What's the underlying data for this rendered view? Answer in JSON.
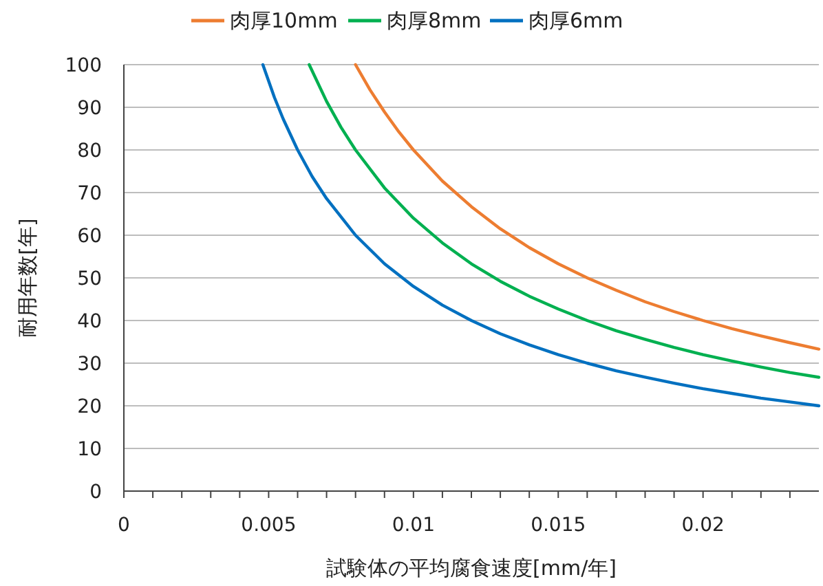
{
  "chart_data": {
    "type": "line",
    "xlabel": "試験体の平均腐食速度[mm/年]",
    "ylabel": "耐用年数[年]",
    "xlim": [
      0,
      0.024
    ],
    "xticks": [
      0,
      {
        "value": 0.001,
        "label": null
      },
      {
        "value": 0.002,
        "label": null
      },
      {
        "value": 0.003,
        "label": null
      },
      {
        "value": 0.004,
        "label": null
      },
      0.005,
      {
        "value": 0.006,
        "label": null
      },
      {
        "value": 0.007,
        "label": null
      },
      {
        "value": 0.008,
        "label": null
      },
      {
        "value": 0.009,
        "label": null
      },
      0.01,
      {
        "value": 0.011,
        "label": null
      },
      {
        "value": 0.012,
        "label": null
      },
      {
        "value": 0.013,
        "label": null
      },
      {
        "value": 0.014,
        "label": null
      },
      0.015,
      {
        "value": 0.016,
        "label": null
      },
      {
        "value": 0.017,
        "label": null
      },
      {
        "value": 0.018,
        "label": null
      },
      {
        "value": 0.019,
        "label": null
      },
      0.02,
      {
        "value": 0.021,
        "label": null
      },
      {
        "value": 0.022,
        "label": null
      },
      {
        "value": 0.023,
        "label": null
      }
    ],
    "ylim": [
      0,
      100
    ],
    "yticks": [
      0,
      10,
      20,
      30,
      40,
      50,
      60,
      70,
      80,
      90,
      100
    ],
    "grid": "y",
    "legend": "top",
    "series": [
      {
        "name": "肉厚10mm",
        "color": "#ed7d31",
        "x": [
          0.008,
          0.0085,
          0.009,
          0.0095,
          0.01,
          0.011,
          0.012,
          0.013,
          0.014,
          0.015,
          0.016,
          0.017,
          0.018,
          0.019,
          0.02,
          0.021,
          0.022,
          0.023,
          0.024
        ],
        "values": [
          100,
          94.1,
          88.9,
          84.2,
          80,
          72.7,
          66.7,
          61.5,
          57.1,
          53.3,
          50,
          47.1,
          44.4,
          42.1,
          40,
          38.1,
          36.4,
          34.8,
          33.3
        ]
      },
      {
        "name": "肉厚8mm",
        "color": "#00b050",
        "x": [
          0.0064,
          0.007,
          0.0075,
          0.008,
          0.009,
          0.01,
          0.011,
          0.012,
          0.013,
          0.014,
          0.015,
          0.016,
          0.017,
          0.018,
          0.019,
          0.02,
          0.021,
          0.022,
          0.023,
          0.024
        ],
        "values": [
          100,
          91.4,
          85.3,
          80,
          71.1,
          64,
          58.2,
          53.3,
          49.2,
          45.7,
          42.7,
          40,
          37.6,
          35.6,
          33.7,
          32,
          30.5,
          29.1,
          27.8,
          26.7
        ]
      },
      {
        "name": "肉厚6mm",
        "color": "#0070c0",
        "x": [
          0.0048,
          0.0052,
          0.0055,
          0.006,
          0.0065,
          0.007,
          0.008,
          0.009,
          0.01,
          0.011,
          0.012,
          0.013,
          0.014,
          0.015,
          0.016,
          0.017,
          0.018,
          0.019,
          0.02,
          0.021,
          0.022,
          0.023,
          0.024
        ],
        "values": [
          100,
          92.3,
          87.3,
          80,
          73.8,
          68.6,
          60,
          53.3,
          48,
          43.6,
          40,
          36.9,
          34.3,
          32,
          30,
          28.2,
          26.7,
          25.3,
          24,
          22.9,
          21.8,
          20.9,
          20
        ]
      }
    ]
  }
}
